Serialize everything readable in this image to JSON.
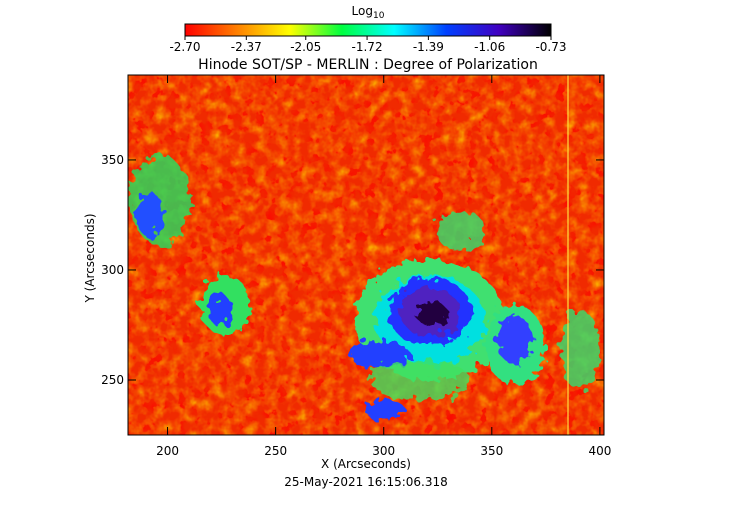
{
  "chart_data": {
    "type": "heatmap",
    "title": "Hinode SOT/SP - MERLIN : Degree of Polarization",
    "x_label": "X (Arcseconds)",
    "y_label": "Y (Arcseconds)",
    "footer": "25-May-2021 16:15:06.318",
    "xlim": [
      181.7,
      401.9
    ],
    "xticks": [
      200,
      250,
      300,
      350,
      400
    ],
    "ylim": [
      225,
      388.6
    ],
    "yticks": [
      250,
      300,
      350
    ],
    "colorbar": {
      "label": "Log",
      "label_sub": "10",
      "lim": [
        -2.7,
        -0.73
      ],
      "ticks": [
        {
          "value": -2.7,
          "label": "-2.70"
        },
        {
          "value": -2.37,
          "label": "-2.37"
        },
        {
          "value": -2.05,
          "label": "-2.05"
        },
        {
          "value": -1.72,
          "label": "-1.72"
        },
        {
          "value": -1.39,
          "label": "-1.39"
        },
        {
          "value": -1.06,
          "label": "-1.06"
        },
        {
          "value": -0.73,
          "label": "-0.73"
        }
      ],
      "colors": [
        "#ff0000",
        "#ff8000",
        "#ffff00",
        "#00ff40",
        "#00ffff",
        "#0040ff",
        "#4000c0",
        "#000000"
      ]
    }
  }
}
